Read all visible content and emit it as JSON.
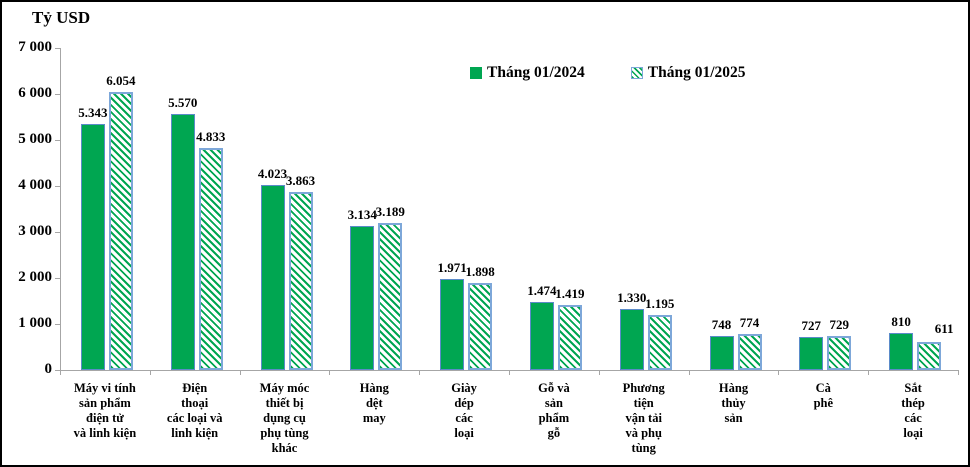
{
  "frame": {
    "title": "Tỷ USD"
  },
  "colors": {
    "bar_green": "#00A651",
    "bar_border_blue": "#5B8BC9",
    "hatch_border_blue": "#7DA7D9",
    "axis_gray": "#A6A6A6",
    "frame_border": "#000000"
  },
  "chart_data": {
    "type": "bar",
    "title": "Tỷ USD",
    "xlabel": "",
    "ylabel": "Tỷ USD",
    "ylim": [
      0,
      7000
    ],
    "grid": false,
    "legend_position": "top-center",
    "ytick_labels": [
      "0",
      "1 000",
      "2 000",
      "3 000",
      "4 000",
      "5 000",
      "6 000",
      "7 000"
    ],
    "categories": [
      "Máy vi tính sản phẩm điện tử và linh kiện",
      "Điện thoại các loại và linh kiện",
      "Máy móc thiết bị dụng cụ phụ tùng khác",
      "Hàng dệt may",
      "Giày dép các loại",
      "Gỗ và sản phẩm gỗ",
      "Phương tiện vận tải và phụ tùng",
      "Hàng thủy sản",
      "Cà phê",
      "Sắt thép các loại"
    ],
    "category_label_lines": [
      "Máy vi tính\nsản phẩm\nđiện tử\nvà linh kiện",
      "Điện\nthoại\ncác loại và\nlinh kiện",
      "Máy móc\nthiết bị\ndụng cụ\nphụ tùng\nkhác",
      "Hàng\ndệt\nmay",
      "Giày\ndép\ncác\nloại",
      "Gỗ và\nsản\nphẩm\ngỗ",
      "Phương\ntiện\nvận tải\nvà phụ\ntùng",
      "Hàng\nthủy\nsản",
      "Cà\nphê",
      "Sắt\nthép\ncác\nloại"
    ],
    "series": [
      {
        "name": "Tháng 01/2024",
        "values": [
          5343,
          5570,
          4023,
          3134,
          1971,
          1474,
          1330,
          748,
          727,
          810
        ],
        "value_labels": [
          "5.343",
          "5.570",
          "4.023",
          "3.134",
          "1.971",
          "1.474",
          "1.330",
          "748",
          "727",
          "810"
        ]
      },
      {
        "name": "Tháng 01/2025",
        "values": [
          6054,
          4833,
          3863,
          3189,
          1898,
          1419,
          1195,
          774,
          729,
          611
        ],
        "value_labels": [
          "6.054",
          "4.833",
          "3.863",
          "3.189",
          "1.898",
          "1.419",
          "1.195",
          "774",
          "729",
          "611"
        ]
      }
    ]
  }
}
